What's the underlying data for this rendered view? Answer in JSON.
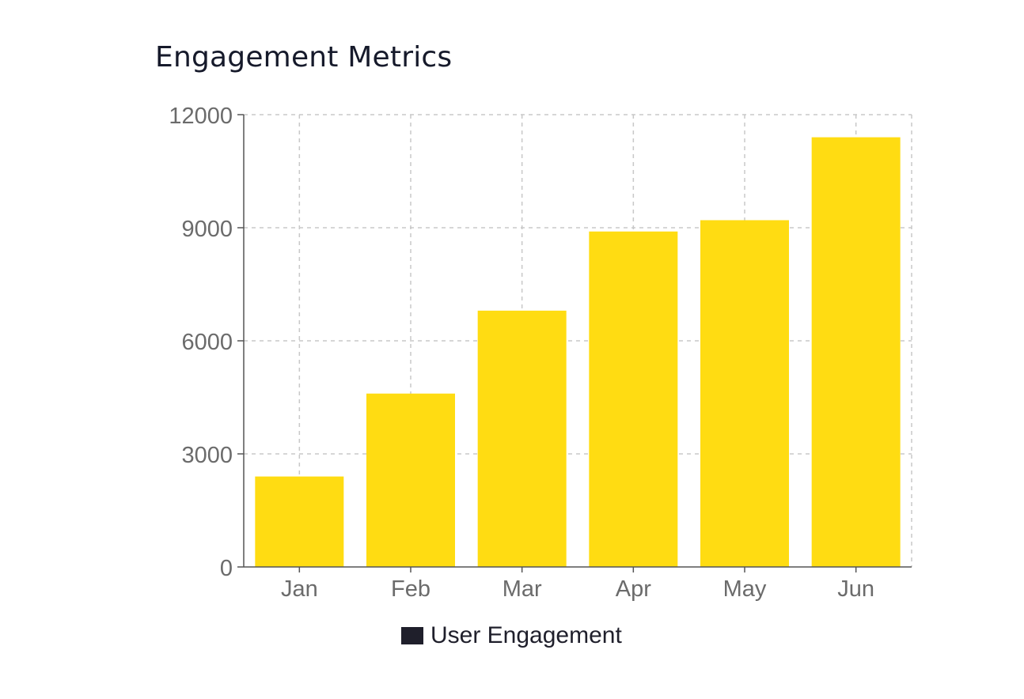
{
  "chart_data": {
    "type": "bar",
    "title": "Engagement Metrics",
    "categories": [
      "Jan",
      "Feb",
      "Mar",
      "Apr",
      "May",
      "Jun"
    ],
    "series": [
      {
        "name": "User Engagement",
        "values": [
          2400,
          4600,
          6800,
          8900,
          9200,
          11400
        ]
      }
    ],
    "ylim": [
      0,
      12000
    ],
    "yticks": [
      0,
      3000,
      6000,
      9000,
      12000
    ],
    "ytick_labels": [
      "0",
      "3000",
      "6000",
      "9000",
      "12000"
    ],
    "grid": true,
    "legend_position": "bottom-center",
    "xlabel": "",
    "ylabel": ""
  },
  "colors": {
    "bar": "#ffdc12",
    "legend_swatch": "#1f1f2b",
    "grid": "#c8c8c8",
    "axis": "#555555"
  }
}
